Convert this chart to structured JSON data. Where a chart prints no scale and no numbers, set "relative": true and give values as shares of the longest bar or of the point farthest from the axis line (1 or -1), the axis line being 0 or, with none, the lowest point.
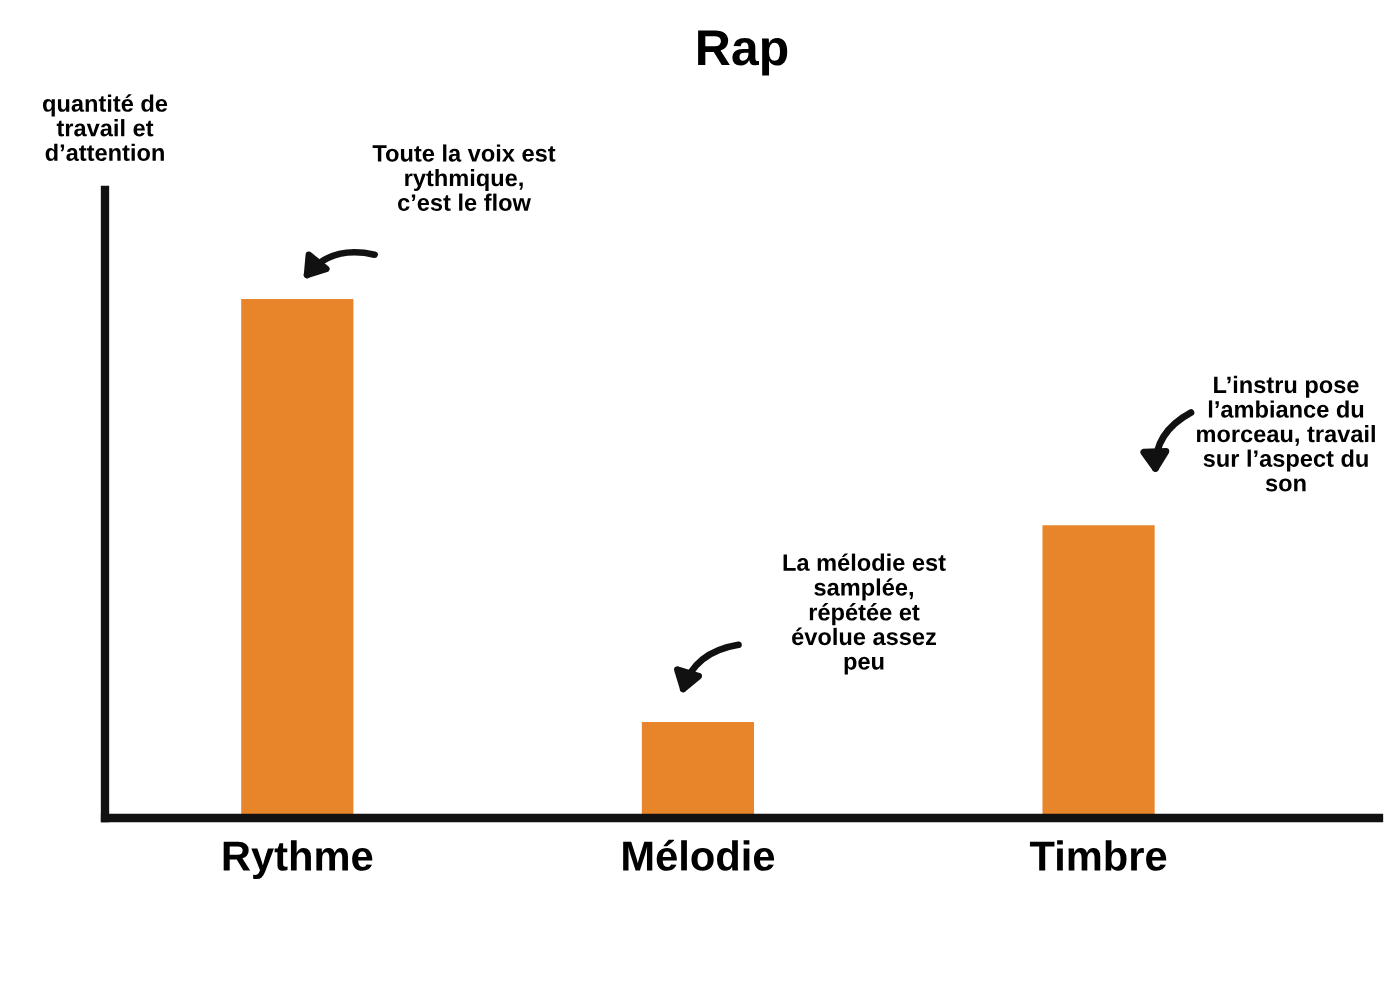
{
  "chart_data": {
    "type": "bar",
    "title": "Rap",
    "categories": [
      "Rythme",
      "Mélodie",
      "Timbre"
    ],
    "values": [
      1,
      0.185,
      0.564
    ],
    "color": "#e8842a",
    "relative": true,
    "grid": false,
    "legend": false,
    "annotations": [
      "Toute la voix est\nrythmique,\nc’est le flow",
      "La mélodie est\nsamplée,\nrépétée et\névolue assez\npeu",
      "L’instru pose\nl’ambiance du\nmorceau, travail\nsur l’aspect du\nson",
      "quantité de\ntravail et\nd’attention"
    ]
  }
}
